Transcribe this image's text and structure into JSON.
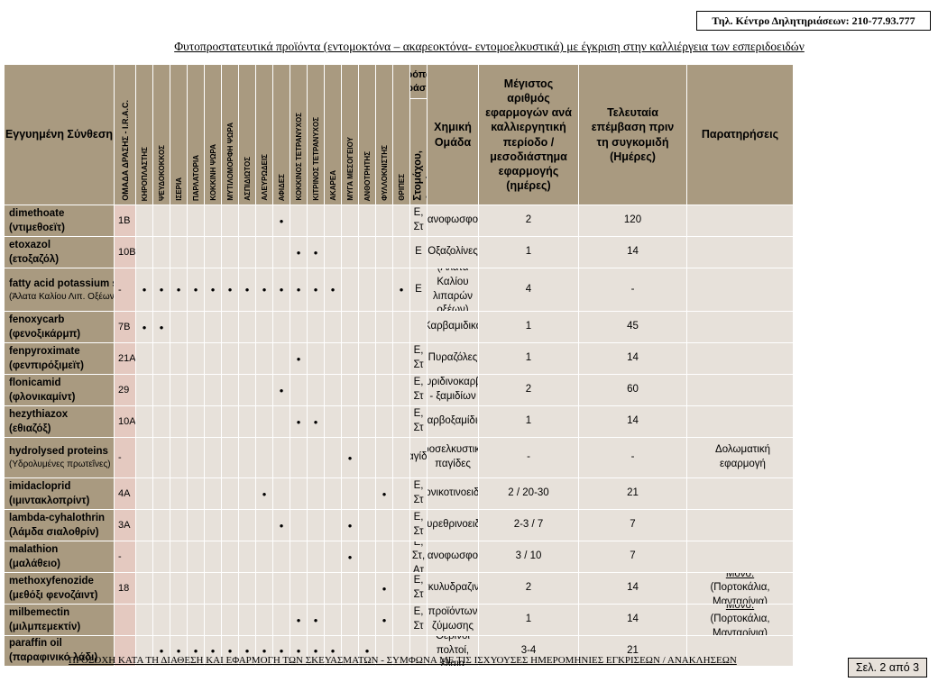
{
  "header": {
    "phone": "Τηλ. Κέντρο Δηλητηριάσεων: 210-77.93.777",
    "title": "Φυτοπροστατευτικά προϊόντα (εντομοκτόνα – ακαρεοκτόνα- εντομοελκυστικά) με έγκριση στην καλλιέργεια των εσπεριδοειδών"
  },
  "columns": {
    "substance": "Εγγυημένη Σύνθεση",
    "irac": "ΟΜΑΔΑ ΔΡΑΣΗΣ - I.R.A.C.",
    "pests": [
      "ΚΗΡΟΠΛΑΣΤΗΣ",
      "ΨΕΥΔΟΚΟΚΚΟΣ",
      "ΙΣΕΡΙΑ",
      "ΠΑΡΛΑΤΟΡΙΑ",
      "ΚΟΚΚΙΝΗ ΨΩΡΑ",
      "ΜΥΤΙΛΟΜΟΡΦΗ ΨΩΡΑ",
      "ΑΣΠΙΔΙΩΤΟΣ",
      "ΑΛΕΥΡΩΔΕΙΣ",
      "ΑΦΙΔΕΣ",
      "ΚΟΚΚΙΝΟΣ ΤΕΤΡΑΝΥΧΟΣ",
      "ΚΙΤΡΙΝΟΣ ΤΕΤΡΑΝΥΧΟΣ",
      "ΑΚΑΡΕΑ",
      "ΜΥΓΑ ΜΕΣΟΓΕΙΟΥ",
      "ΑΝΘΟΤΡΗΤΗΣ",
      "ΦΥΛΛΟΚΝΙΣΤΗΣ",
      "ΘΡΙΠΕΣ"
    ],
    "mode_group": "Τρόπος Δράσης",
    "mode_sub": "Επαφής,\nΣτομάχου,\nΑτμών",
    "chemgroup": "Χημική Ομάδα",
    "maxapps": "Μέγιστος αριθμός εφαρμογών ανά καλλιεργητική περίοδο / μεσοδιάστημα εφαρμογής (ημέρες)",
    "phi": "Τελευταία επέμβαση πριν τη συγκομιδή (Ημέρες)",
    "remarks": "Παρατηρήσεις"
  },
  "rows": [
    {
      "name": "dimethoate",
      "greek": "(ντιμεθοεϊτ)",
      "irac": "1B",
      "dots": [
        8
      ],
      "mode": "Ε, Στ",
      "chem": "Οργανοφωσφορικά",
      "apps": "2",
      "phi": "120",
      "remark_label": "",
      "remark": ""
    },
    {
      "name": "etoxazol",
      "greek": "(ετοξαζόλ)",
      "irac": "10B",
      "dots": [
        9,
        10
      ],
      "mode": "Ε",
      "chem": "Οξαζολίνες",
      "apps": "1",
      "phi": "14",
      "remark_label": "",
      "remark": ""
    },
    {
      "name": "fatty acid potassium sa",
      "greek": "(Άλατα Καλίου Λιπ. Οξέων)",
      "irac": "-",
      "dots": [
        0,
        1,
        2,
        3,
        4,
        5,
        6,
        7,
        8,
        9,
        10,
        11,
        15
      ],
      "mode": "Ε",
      "chem": "(Άλατα Καλίου λιπαρών οξέων)",
      "apps": "4",
      "phi": "-",
      "remark_label": "",
      "remark": ""
    },
    {
      "name": "fenoxycarb",
      "greek": "(φενοξικάρμπ)",
      "irac": "7B",
      "dots": [
        0,
        1
      ],
      "mode": "",
      "chem": "Καρβαμιδικό",
      "apps": "1",
      "phi": "45",
      "remark_label": "",
      "remark": ""
    },
    {
      "name": "fenpyroximate",
      "greek": "(φενπιρόξιμεϊτ)",
      "irac": "21A",
      "dots": [
        9
      ],
      "mode": "Ε, Στ",
      "chem": "Πυραζόλες",
      "apps": "1",
      "phi": "14",
      "remark_label": "",
      "remark": ""
    },
    {
      "name": "flonicamid",
      "greek": "(φλονικαμίντ)",
      "irac": "29",
      "dots": [
        8
      ],
      "mode": "Ε, Στ",
      "chem": "Πυριδινοκαρβο - ξαμιδίων",
      "apps": "2",
      "phi": "60",
      "remark_label": "",
      "remark": ""
    },
    {
      "name": "hezythiazox",
      "greek": "(εθιαζόξ)",
      "irac": "10A",
      "dots": [
        9,
        10
      ],
      "mode": "Ε, Στ",
      "chem": "καρβοξαμίδια",
      "apps": "1",
      "phi": "14",
      "remark_label": "",
      "remark": ""
    },
    {
      "name": "hydrolysed proteins",
      "greek": "(Υδρολυμένες πρωτεΐνες)",
      "irac": "-",
      "dots": [
        12
      ],
      "mode": "Παγίδες",
      "chem": "προσελκυστικές παγίδες",
      "apps": "-",
      "phi": "-",
      "remark_label": "",
      "remark": "Δολωματική εφαρμογή"
    },
    {
      "name": "imidacloprid",
      "greek": "(ιμιντακλοπρίντ)",
      "irac": "4A",
      "dots": [
        7,
        14
      ],
      "mode": "Ε, Στ",
      "chem": "Νεονικοτινοειδών",
      "apps": "2 / 20-30",
      "phi": "21",
      "remark_label": "",
      "remark": ""
    },
    {
      "name": "lambda-cyhalothrin",
      "greek": "(λάμδα σιαλοθρίν)",
      "irac": "3A",
      "dots": [
        8,
        12
      ],
      "mode": "Ε, Στ",
      "chem": "Πυρεθρινοειδή",
      "apps": "2-3 / 7",
      "phi": "7",
      "remark_label": "",
      "remark": ""
    },
    {
      "name": "malathion",
      "greek": "(μαλάθειο)",
      "irac": "-",
      "dots": [
        12
      ],
      "mode": "Ε, Στ, Ατ",
      "chem": "Οργανοφωσφορικά",
      "apps": "3 / 10",
      "phi": "7",
      "remark_label": "",
      "remark": ""
    },
    {
      "name": "methoxyfenozide",
      "greek": "(μεθόξι φενοζάιντ)",
      "irac": "18",
      "dots": [
        14
      ],
      "mode": "Ε, Στ",
      "chem": "Διακυλυδραζινών",
      "apps": "2",
      "phi": "14",
      "remark_label": "Μόνο:",
      "remark": "(Πορτοκάλια, Μανταρίνια)"
    },
    {
      "name": "milbemectin",
      "greek": "(μιλμπεμεκτίν)",
      "irac": "",
      "dots": [
        9,
        10,
        14
      ],
      "mode": "Ε, Στ",
      "chem": "μίγμα προϊόντων ζύμωσης βακτηρίου",
      "apps": "1",
      "phi": "14",
      "remark_label": "Μόνο:",
      "remark": "(Πορτοκάλια, Μανταρίνια)"
    },
    {
      "name": "paraffin oil",
      "greek": "(παραφινικό λάδι)",
      "irac": "",
      "dots": [
        1,
        2,
        3,
        4,
        5,
        6,
        7,
        8,
        9,
        10,
        11,
        13
      ],
      "mode": "",
      "chem": "Θερινοί πολτοί, έλαια",
      "apps": "3-4",
      "phi": "21",
      "remark_label": "",
      "remark": ""
    }
  ],
  "footer": {
    "note": "ΠΡΟΣΟΧΗ ΚΑΤΑ ΤΗ ΔΙΑΘΕΣΗ ΚΑΙ ΕΦΑΡΜΟΓΗ ΤΩΝ ΣΚΕΥΑΣΜΑΤΩΝ - ΣΥΜΦΩΝΑ ΜΕ ΤΙΣ ΙΣΧΥΟΥΣΕΣ ΗΜΕΡΟΜΗΝΙΕΣ ΕΓΚΡΙΣΕΩΝ / ΑΝΑΚΛΗΣΕΩΝ",
    "page": "Σελ. 2 από 3"
  },
  "colors": {
    "header_bg": "#a99a80",
    "cell_bg": "#e7e1da",
    "irac_bg": "#e4c9c0"
  }
}
